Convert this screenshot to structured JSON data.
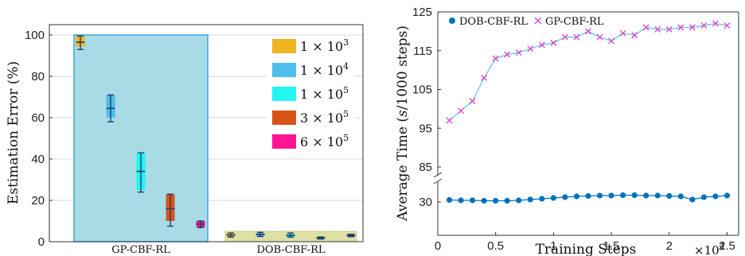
{
  "chart_data": [
    {
      "type": "box",
      "ylabel": "Estimation Error (%)",
      "ylim": [
        0,
        105
      ],
      "yticks": [
        0,
        20,
        40,
        60,
        80,
        100
      ],
      "grid": true,
      "legend_position": "right",
      "groups": [
        {
          "name": "GP-CBF-RL",
          "region_color": "#a9dbe6",
          "region_height": 100,
          "boxes": [
            {
              "series": "1 × 10^3",
              "q1": 94.5,
              "median": 96.5,
              "q3": 99.5,
              "whisker_low": 93,
              "whisker_high": 99.5
            },
            {
              "series": "1 × 10^4",
              "q1": 60,
              "median": 64.5,
              "q3": 71,
              "whisker_low": 58,
              "whisker_high": 71
            },
            {
              "series": "1 × 10^5",
              "q1": 25,
              "median": 34,
              "q3": 43,
              "whisker_low": 24,
              "whisker_high": 43
            },
            {
              "series": "3 × 10^5",
              "q1": 10,
              "median": 16,
              "q3": 23,
              "whisker_low": 7.5,
              "whisker_high": 23
            },
            {
              "series": "6 × 10^5",
              "q1": 7,
              "median": 8.5,
              "q3": 10,
              "whisker_low": 6.8,
              "whisker_high": 10
            }
          ]
        },
        {
          "name": "DOB-CBF-RL",
          "region_color": "#dfe0a4",
          "region_height": 5,
          "boxes": [
            {
              "series": "1 × 10^3",
              "q1": 2.5,
              "median": 3.2,
              "q3": 4,
              "whisker_low": 2.2,
              "whisker_high": 4.2
            },
            {
              "series": "1 × 10^4",
              "q1": 2.8,
              "median": 3.5,
              "q3": 4.2,
              "whisker_low": 2.5,
              "whisker_high": 4.5
            },
            {
              "series": "1 × 10^5",
              "q1": 2.5,
              "median": 3.1,
              "q3": 3.8,
              "whisker_low": 2.2,
              "whisker_high": 4.2
            },
            {
              "series": "3 × 10^5",
              "q1": 1.4,
              "median": 1.8,
              "q3": 2.2,
              "whisker_low": 1.3,
              "whisker_high": 2.3
            },
            {
              "series": "6 × 10^5",
              "q1": 2.6,
              "median": 3,
              "q3": 3.5,
              "whisker_low": 2.4,
              "whisker_high": 3.6
            }
          ]
        }
      ],
      "legend": [
        {
          "prefix": "1 × 10",
          "sup": "3",
          "color": "#f0b41e"
        },
        {
          "prefix": "1 × 10",
          "sup": "4",
          "color": "#4dbeee"
        },
        {
          "prefix": "1 × 10",
          "sup": "5",
          "color": "#22f6f2"
        },
        {
          "prefix": "3 × 10",
          "sup": "5",
          "color": "#d95319"
        },
        {
          "prefix": "6 × 10",
          "sup": "5",
          "color": "#ff1493"
        }
      ]
    },
    {
      "type": "line",
      "xlabel": "Training Steps",
      "x_multiplier": "×10",
      "x_multiplier_exp": "4",
      "ylabel": "Average Time (s/1000 steps)",
      "ylabel_parts": [
        "Average Time (",
        "s",
        "/1000 steps)"
      ],
      "xlim": [
        0,
        2.6
      ],
      "xticks": [
        "0",
        "0.5",
        "1",
        "1.5",
        "2",
        "2.5"
      ],
      "yticks_upper": [
        "85",
        "95",
        "105",
        "115",
        "125"
      ],
      "yticks_lower": [
        "30"
      ],
      "y_axis_break": [
        33,
        83
      ],
      "legend_position": "top-left",
      "series": [
        {
          "name": "DOB-CBF-RL",
          "marker": "circle",
          "color": "#0072bd",
          "x": [
            0.1,
            0.2,
            0.3,
            0.4,
            0.5,
            0.6,
            0.7,
            0.8,
            0.9,
            1.0,
            1.1,
            1.2,
            1.3,
            1.4,
            1.5,
            1.6,
            1.7,
            1.8,
            1.9,
            2.0,
            2.1,
            2.2,
            2.3,
            2.4,
            2.5
          ],
          "y": [
            30.5,
            30.4,
            30.4,
            30.3,
            30.3,
            30.3,
            30.4,
            30.6,
            30.8,
            31.0,
            31.2,
            31.4,
            31.5,
            31.6,
            31.6,
            31.7,
            31.7,
            31.6,
            31.6,
            31.5,
            31.4,
            30.6,
            31.2,
            31.4,
            31.6
          ]
        },
        {
          "name": "GP-CBF-RL",
          "marker": "x",
          "color": "#e040d0",
          "line_color": "#66c4e6",
          "x": [
            0.1,
            0.2,
            0.3,
            0.4,
            0.5,
            0.6,
            0.7,
            0.8,
            0.9,
            1.0,
            1.1,
            1.2,
            1.3,
            1.4,
            1.5,
            1.6,
            1.7,
            1.8,
            1.9,
            2.0,
            2.1,
            2.2,
            2.3,
            2.4,
            2.5
          ],
          "y": [
            97,
            99.5,
            102,
            108,
            113,
            114,
            114.5,
            115.5,
            116.5,
            117,
            118.5,
            118.5,
            120,
            118.5,
            117.5,
            119.5,
            119,
            121,
            120.5,
            120.5,
            121,
            121,
            121.5,
            122,
            121.5
          ]
        }
      ]
    }
  ]
}
